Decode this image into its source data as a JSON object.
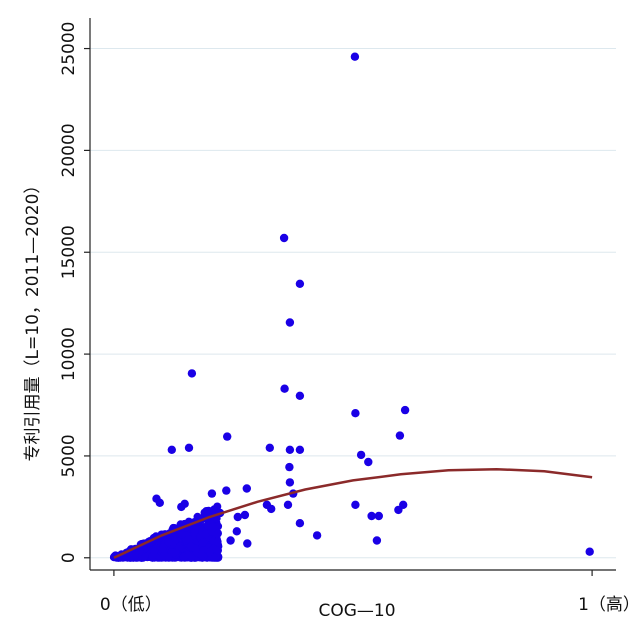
{
  "chart_data": {
    "type": "scatter",
    "title": "",
    "xlabel": "COG—10",
    "ylabel": "专利引用量（L=10，2011—2020）",
    "xlim": [
      -0.05,
      1.05
    ],
    "ylim": [
      -600,
      26500
    ],
    "x_ticks": [
      {
        "value": 0,
        "label": "0（低）"
      },
      {
        "value": 1,
        "label": "1（高）"
      }
    ],
    "y_ticks": [
      {
        "value": 0,
        "label": "0"
      },
      {
        "value": 5000,
        "label": "5000"
      },
      {
        "value": 10000,
        "label": "10000"
      },
      {
        "value": 15000,
        "label": "15000"
      },
      {
        "value": 20000,
        "label": "20000"
      },
      {
        "value": 25000,
        "label": "25000"
      }
    ],
    "grid": "horizontal",
    "colors": {
      "points": "#1a00e6",
      "fit_line": "#8b2a2a",
      "grid": "#dde8ee",
      "axis": "#222222"
    },
    "fit_line": {
      "type": "quadratic",
      "x": [
        0,
        0.1,
        0.2,
        0.3,
        0.4,
        0.5,
        0.6,
        0.7,
        0.8,
        0.9,
        1.0
      ],
      "y": [
        0,
        1100,
        2000,
        2750,
        3350,
        3800,
        4100,
        4300,
        4350,
        4250,
        3950
      ]
    },
    "outliers": {
      "x": [
        0.504,
        0.356,
        0.389,
        0.368,
        0.163,
        0.357,
        0.389,
        0.505,
        0.609,
        0.598,
        0.517,
        0.532,
        0.237,
        0.157,
        0.121,
        0.326,
        0.368,
        0.389,
        0.367,
        0.368,
        0.375,
        0.235,
        0.205,
        0.32,
        0.505,
        0.605,
        0.595,
        0.554,
        0.539,
        0.089,
        0.096,
        0.141,
        0.148,
        0.198,
        0.278,
        0.329,
        0.222,
        0.274,
        0.259,
        0.364,
        0.389,
        0.425,
        0.55,
        0.995,
        0.279,
        0.207,
        0.257,
        0.244
      ],
      "y": [
        24600,
        15700,
        13450,
        11550,
        9050,
        8300,
        7950,
        7100,
        7250,
        6000,
        5050,
        4700,
        5950,
        5400,
        5300,
        5400,
        5300,
        5300,
        4450,
        3700,
        3150,
        3300,
        3150,
        2600,
        2600,
        2600,
        2350,
        2050,
        2050,
        2900,
        2700,
        2500,
        2650,
        2300,
        3400,
        2400,
        2200,
        2100,
        2000,
        2600,
        1700,
        1100,
        850,
        300,
        700,
        1500,
        1300,
        850
      ]
    },
    "cluster": {
      "count": 640,
      "x_range": [
        0,
        0.22
      ],
      "y_max_slope": 12000
    }
  }
}
